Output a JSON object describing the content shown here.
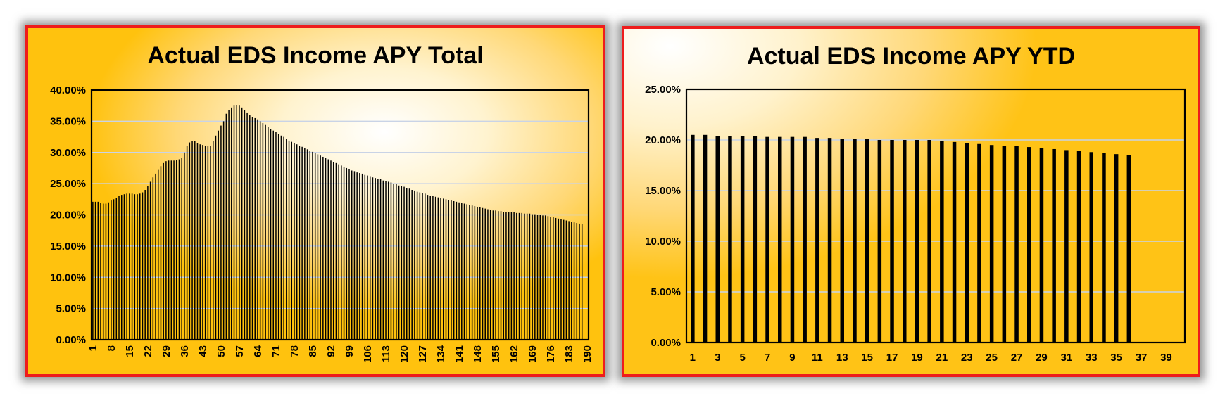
{
  "chart_data": [
    {
      "type": "bar",
      "title": "Actual EDS Income APY Total",
      "x_ticks": [
        "1",
        "8",
        "15",
        "22",
        "29",
        "36",
        "43",
        "50",
        "57",
        "64",
        "71",
        "78",
        "85",
        "92",
        "99",
        "106",
        "113",
        "120",
        "127",
        "134",
        "141",
        "148",
        "155",
        "162",
        "169",
        "176",
        "183",
        "190"
      ],
      "x_range": [
        1,
        190
      ],
      "ylim": [
        0,
        0.4
      ],
      "y_ticks": [
        "0.00%",
        "5.00%",
        "10.00%",
        "15.00%",
        "20.00%",
        "25.00%",
        "30.00%",
        "35.00%",
        "40.00%"
      ],
      "grid": true,
      "bar_color": "#000000",
      "values": [
        0.221,
        0.221,
        0.221,
        0.219,
        0.218,
        0.218,
        0.22,
        0.223,
        0.225,
        0.227,
        0.23,
        0.232,
        0.233,
        0.234,
        0.234,
        0.234,
        0.233,
        0.233,
        0.234,
        0.236,
        0.24,
        0.246,
        0.253,
        0.26,
        0.266,
        0.272,
        0.278,
        0.283,
        0.286,
        0.287,
        0.287,
        0.287,
        0.288,
        0.289,
        0.291,
        0.3,
        0.31,
        0.316,
        0.318,
        0.318,
        0.315,
        0.313,
        0.312,
        0.311,
        0.31,
        0.31,
        0.318,
        0.327,
        0.335,
        0.343,
        0.35,
        0.362,
        0.368,
        0.372,
        0.375,
        0.376,
        0.375,
        0.372,
        0.368,
        0.364,
        0.36,
        0.357,
        0.355,
        0.353,
        0.35,
        0.347,
        0.344,
        0.341,
        0.338,
        0.335,
        0.333,
        0.33,
        0.327,
        0.325,
        0.322,
        0.319,
        0.317,
        0.315,
        0.313,
        0.311,
        0.309,
        0.307,
        0.305,
        0.303,
        0.301,
        0.299,
        0.297,
        0.295,
        0.293,
        0.291,
        0.289,
        0.287,
        0.285,
        0.283,
        0.281,
        0.279,
        0.277,
        0.275,
        0.273,
        0.271,
        0.27,
        0.268,
        0.267,
        0.266,
        0.264,
        0.263,
        0.262,
        0.26,
        0.259,
        0.258,
        0.257,
        0.255,
        0.254,
        0.253,
        0.252,
        0.25,
        0.249,
        0.247,
        0.246,
        0.245,
        0.243,
        0.242,
        0.24,
        0.239,
        0.237,
        0.236,
        0.235,
        0.234,
        0.232,
        0.231,
        0.23,
        0.229,
        0.228,
        0.227,
        0.226,
        0.225,
        0.224,
        0.223,
        0.222,
        0.221,
        0.22,
        0.219,
        0.218,
        0.217,
        0.216,
        0.215,
        0.214,
        0.213,
        0.212,
        0.211,
        0.21,
        0.209,
        0.208,
        0.207,
        0.207,
        0.206,
        0.206,
        0.205,
        0.205,
        0.204,
        0.204,
        0.204,
        0.203,
        0.203,
        0.203,
        0.202,
        0.202,
        0.202,
        0.201,
        0.201,
        0.2,
        0.2,
        0.199,
        0.199,
        0.198,
        0.197,
        0.196,
        0.195,
        0.194,
        0.193,
        0.192,
        0.191,
        0.19,
        0.189,
        0.188,
        0.187,
        0.186,
        0.185
      ]
    },
    {
      "type": "bar",
      "title": "Actual EDS Income APY YTD",
      "x_ticks": [
        "1",
        "3",
        "5",
        "7",
        "9",
        "11",
        "13",
        "15",
        "17",
        "19",
        "21",
        "23",
        "25",
        "27",
        "29",
        "31",
        "33",
        "35",
        "37",
        "39"
      ],
      "x_range": [
        1,
        40
      ],
      "ylim": [
        0,
        0.25
      ],
      "y_ticks": [
        "0.00%",
        "5.00%",
        "10.00%",
        "15.00%",
        "20.00%",
        "25.00%"
      ],
      "grid": true,
      "bar_color": "#000000",
      "values": [
        0.205,
        0.205,
        0.204,
        0.204,
        0.204,
        0.204,
        0.203,
        0.203,
        0.203,
        0.203,
        0.202,
        0.202,
        0.201,
        0.201,
        0.201,
        0.2,
        0.2,
        0.2,
        0.2,
        0.2,
        0.199,
        0.198,
        0.197,
        0.196,
        0.195,
        0.194,
        0.194,
        0.193,
        0.192,
        0.191,
        0.19,
        0.189,
        0.188,
        0.187,
        0.186,
        0.185
      ]
    }
  ]
}
